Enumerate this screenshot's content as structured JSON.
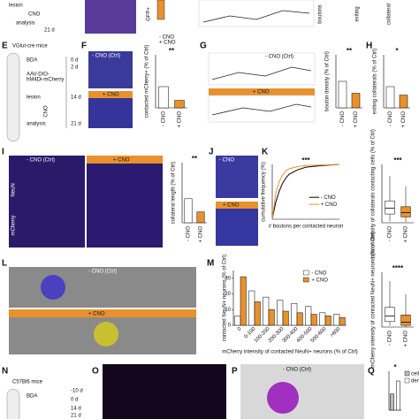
{
  "panels": {
    "top": {
      "lesion": "lesion",
      "cno": "CNO",
      "analysis": "analysis",
      "d21": "21 d",
      "gfp": "GFP+",
      "boutons": "boutons",
      "exiting": "exiting",
      "collateral": "collateral",
      "minus": "- CNO",
      "plus": "+ CNO"
    },
    "E": {
      "letter": "E",
      "mouse": "VGlut-cre mice",
      "bda": "BDA",
      "aav": "AAV-DIO-",
      "aav2": "hM4Di-mCherry",
      "d0": "0 d",
      "d2": "2 d",
      "d14": "14 d",
      "d21": "21 d",
      "lesion": "lesion",
      "analysis": "analysis",
      "cno": "CNO"
    },
    "F": {
      "letter": "F",
      "ctrl": "- CNO (Ctrl)",
      "plus": "+ CNO"
    },
    "G": {
      "letter": "G",
      "ctrl": "- CNO (Ctrl)",
      "plus": "+ CNO"
    },
    "H": {
      "letter": "H"
    },
    "I": {
      "letter": "I",
      "ctrl": "- CNO (Ctrl)",
      "plus": "+ CNO",
      "neun": "NeuN",
      "mcherry": "mCherry"
    },
    "J": {
      "letter": "J",
      "ctrl": "- CNO",
      "plus": "+ CNO"
    },
    "K": {
      "letter": "K"
    },
    "L": {
      "letter": "L",
      "ctrl": "- CNO (Ctrl)",
      "plus": "+ CNO"
    },
    "M": {
      "letter": "M"
    },
    "N": {
      "letter": "N",
      "mouse": "C57Bl6 mice",
      "bda": "BDA",
      "dm10": "-10 d",
      "d0": "0 d",
      "d14": "14 d",
      "d21": "21 d"
    },
    "O": {
      "letter": "O"
    },
    "P": {
      "letter": "P",
      "ctrl": "- CNO (Ctrl)"
    },
    "Q": {
      "letter": "Q"
    }
  },
  "charts": [
    {
      "type": "bar",
      "ylabel": "contacted mCherry+ (% of Ctrl)",
      "categories": [
        "- CNO",
        "+ CNO"
      ],
      "values": [
        100,
        35
      ],
      "colors": [
        "#ffffff",
        "#e8912d"
      ],
      "ylim": [
        0,
        250
      ],
      "significance": "**"
    },
    {
      "type": "bar",
      "ylabel": "bouton density (% of Ctrl)",
      "categories": [
        "- CNO",
        "+ CNO"
      ],
      "values": [
        100,
        55
      ],
      "colors": [
        "#ffffff",
        "#e8912d"
      ],
      "ylim": [
        0,
        200
      ],
      "significance": "**"
    },
    {
      "type": "bar",
      "ylabel": "exiting collaterals (% of Ctrl)",
      "categories": [
        "- CNO",
        "+ CNO"
      ],
      "values": [
        100,
        60
      ],
      "colors": [
        "#ffffff",
        "#e8912d"
      ],
      "ylim": [
        0,
        250
      ],
      "significance": "*"
    },
    {
      "type": "bar",
      "ylabel": "collateral length (% of Ctrl)",
      "categories": [
        "- CNO",
        "+ CNO"
      ],
      "values": [
        100,
        45
      ],
      "colors": [
        "#ffffff",
        "#e8912d"
      ],
      "ylim": [
        0,
        250
      ],
      "significance": "**"
    },
    {
      "type": "line",
      "ylabel": "cumulative frequency (%)",
      "xlabel": "# boutons per contacted neuron",
      "xlim": [
        0,
        40
      ],
      "ylim": [
        0,
        100
      ],
      "significance": "***",
      "series": [
        {
          "name": "- CNO",
          "color": "#000000",
          "x": [
            0,
            2,
            4,
            6,
            8,
            10,
            15,
            20,
            30,
            40
          ],
          "values": [
            0,
            30,
            50,
            65,
            75,
            82,
            90,
            95,
            98,
            100
          ]
        },
        {
          "name": "+ CNO",
          "color": "#e8912d",
          "x": [
            0,
            2,
            4,
            6,
            8,
            10,
            15,
            20,
            30,
            40
          ],
          "values": [
            0,
            45,
            68,
            80,
            88,
            92,
            96,
            98,
            99,
            100
          ]
        }
      ]
    },
    {
      "type": "box",
      "ylabel": "bouton density of collaterals contacting cells (% of Ctrl)",
      "categories": [
        "- CNO",
        "+ CNO"
      ],
      "colors": [
        "#ffffff",
        "#e8912d"
      ],
      "ylim": [
        0,
        400
      ],
      "significance": "***",
      "boxes": [
        {
          "min": 10,
          "q1": 60,
          "median": 100,
          "q3": 150,
          "max": 320
        },
        {
          "min": 5,
          "q1": 40,
          "median": 70,
          "q3": 110,
          "max": 250
        }
      ]
    },
    {
      "type": "grouped",
      "ylabel": "contacted NeuN+ neurons (% of Ctrl)",
      "xlabel": "mCherry intensity of contacted NeuN+ neurons (% of Ctrl)",
      "categories": [
        "0",
        "0-100",
        "100-200",
        "200-300",
        "300-400",
        "400-500",
        "500-600",
        ">600"
      ],
      "ylim": [
        0,
        35
      ],
      "yticks": [
        0,
        10,
        20,
        30
      ],
      "series": [
        {
          "name": "- CNO",
          "color": "#ffffff",
          "values": [
            6,
            22,
            18,
            16,
            14,
            12,
            8,
            7
          ]
        },
        {
          "name": "+ CNO",
          "color": "#e8912d",
          "values": [
            31,
            15,
            10,
            9,
            8,
            7,
            6,
            5
          ]
        }
      ]
    },
    {
      "type": "box",
      "ylabel": "mCherry intensity of contacted NeuN+ neurons (% of Ctrl)",
      "categories": [
        "- CNO",
        "+ CNO"
      ],
      "colors": [
        "#ffffff",
        "#e8912d"
      ],
      "ylim": [
        0,
        500
      ],
      "significance": "****",
      "boxes": [
        {
          "min": 10,
          "q1": 50,
          "median": 100,
          "q3": 180,
          "max": 420
        },
        {
          "min": 0,
          "q1": 15,
          "median": 45,
          "q3": 110,
          "max": 300
        }
      ]
    },
    {
      "type": "bar",
      "legend": true,
      "categories": [
        "cell bodies",
        "dendrites"
      ],
      "values": [
        25,
        45
      ],
      "colors": [
        "#bbbbbb",
        "#ffffff"
      ],
      "ylim": [
        0,
        60
      ],
      "significance": "*"
    }
  ]
}
